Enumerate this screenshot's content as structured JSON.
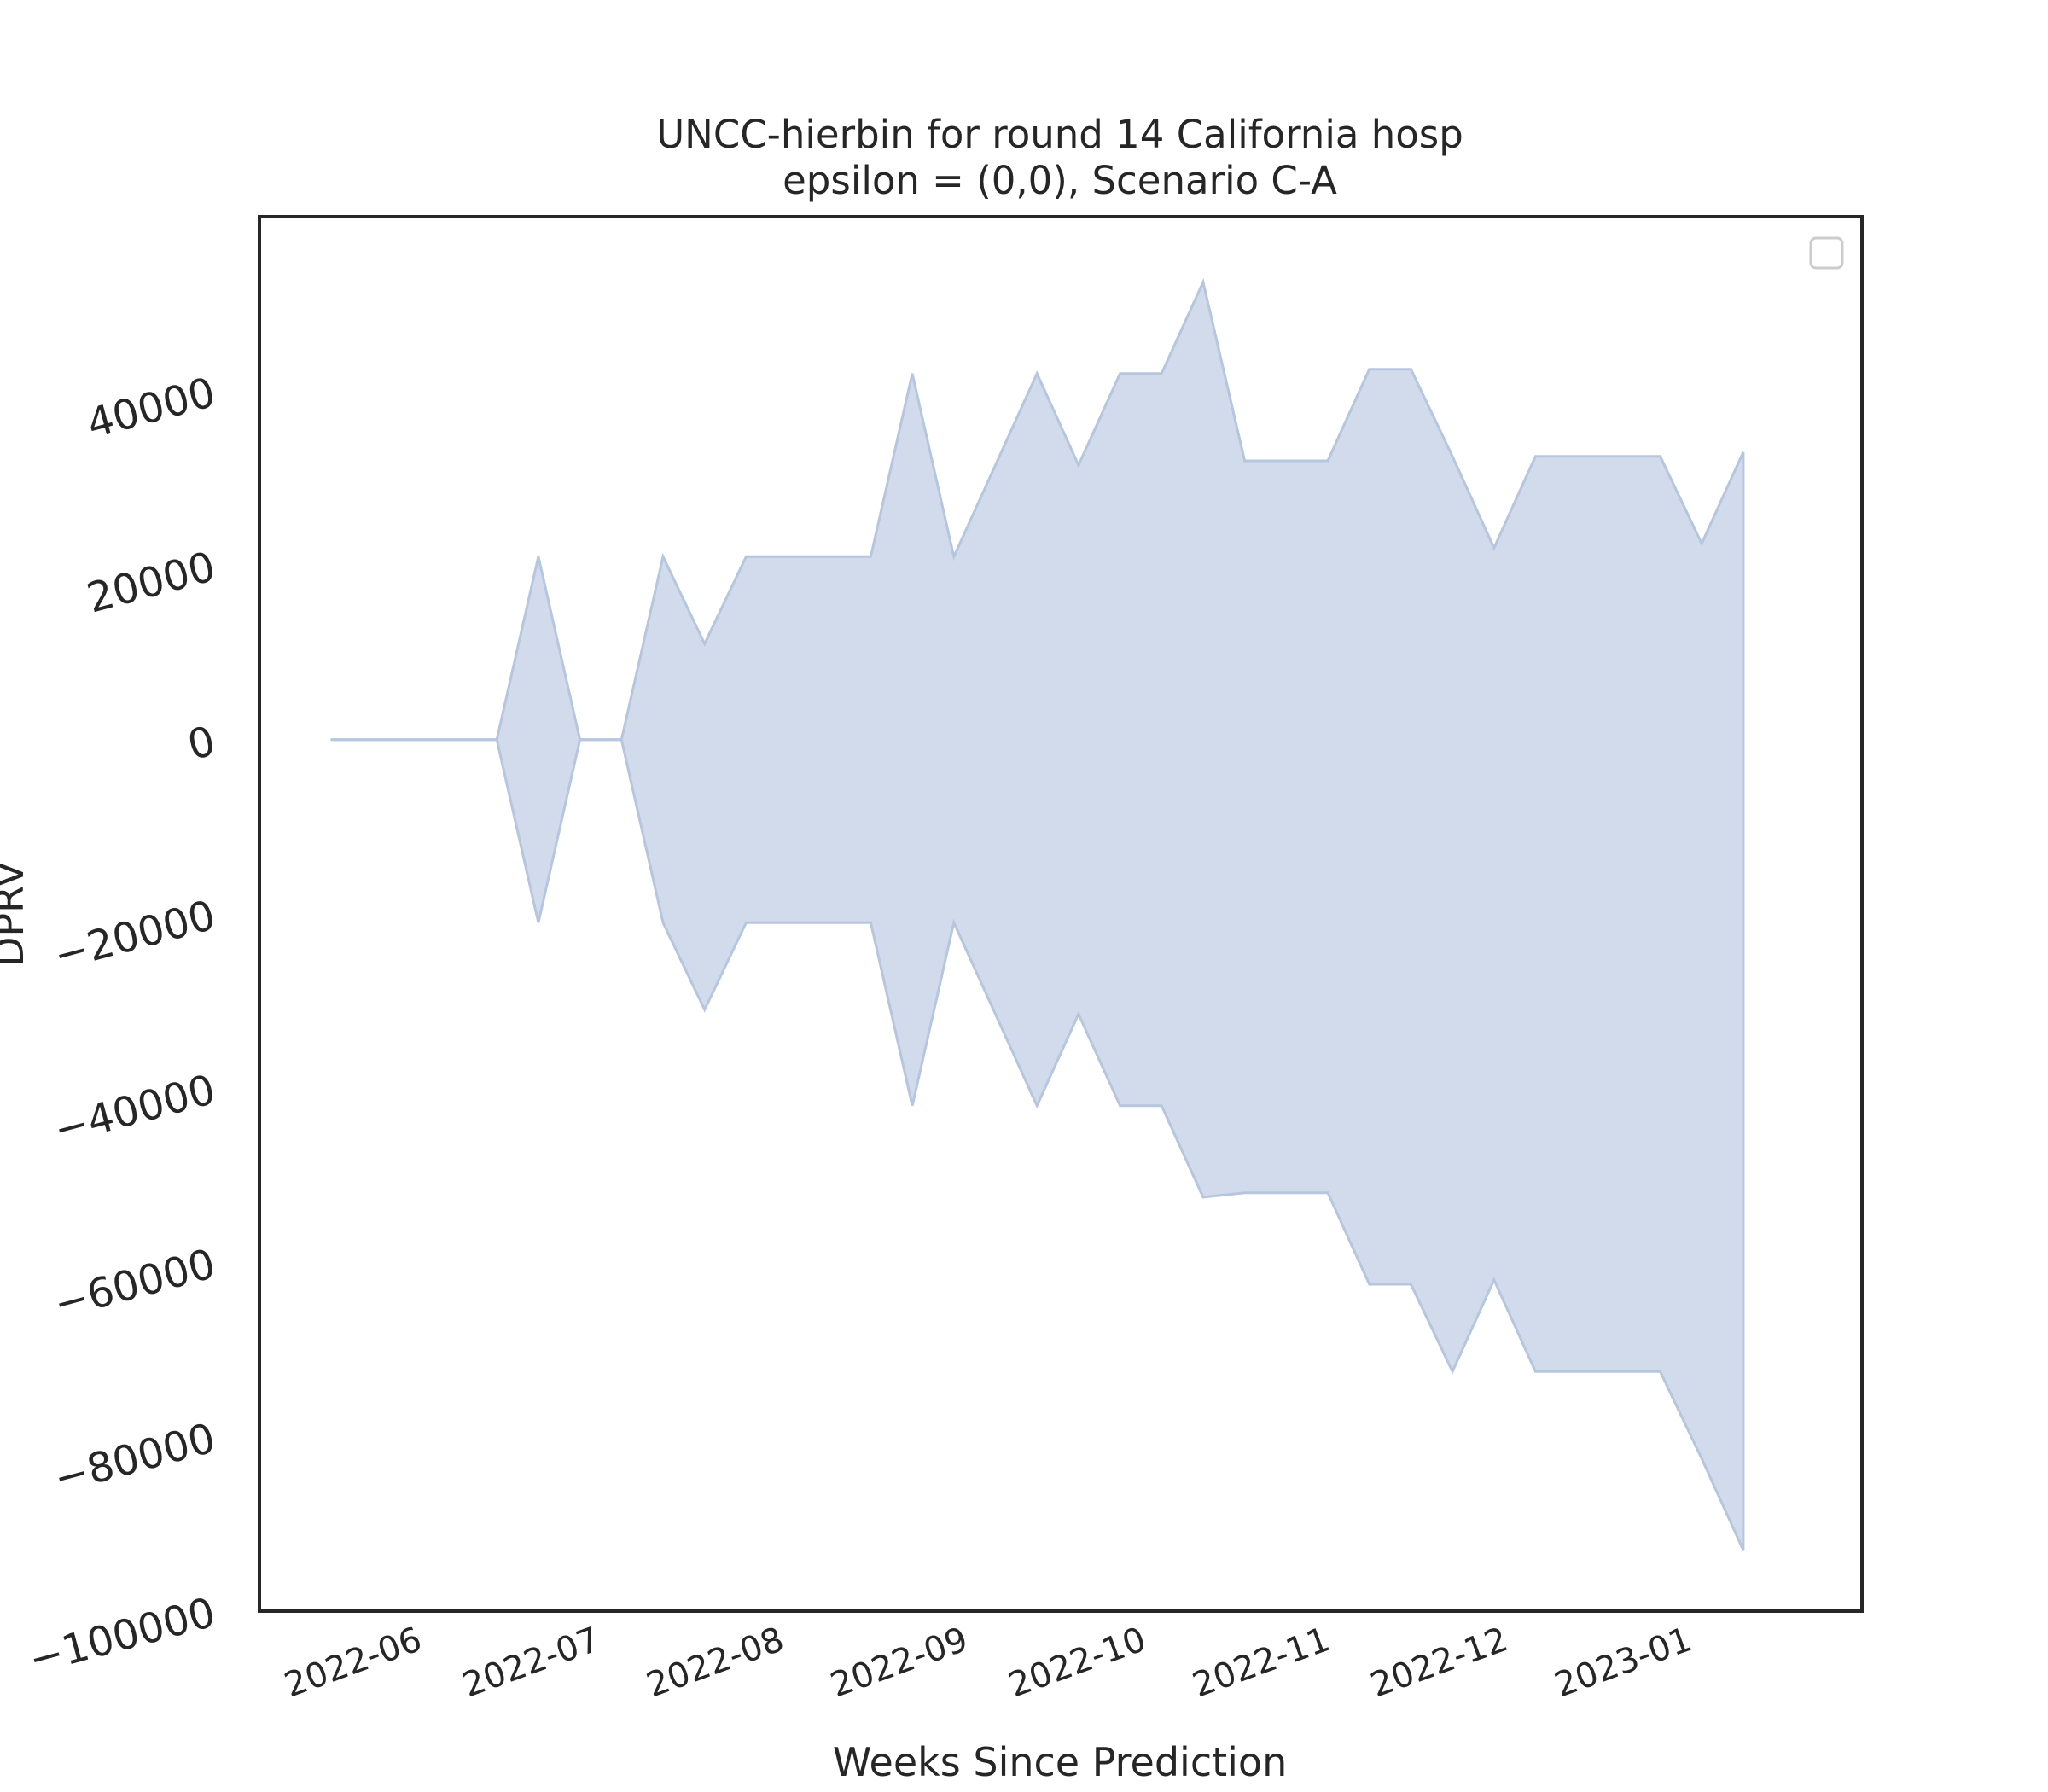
{
  "chart_data": {
    "type": "area",
    "title": "UNCC-hierbin for round 14 California hosp",
    "subtitle": "epsilon = (0,0), Scenario C-A",
    "xlabel": "Weeks Since Prediction",
    "ylabel": "DPRV",
    "xlim": [
      "2022-05-06",
      "2023-01-31"
    ],
    "ylim": [
      -100000,
      60000
    ],
    "grid": false,
    "legend": "top-right",
    "x_ticks": [
      "2022-06",
      "2022-07",
      "2022-08",
      "2022-09",
      "2022-10",
      "2022-11",
      "2022-12",
      "2023-01"
    ],
    "y_ticks": [
      40000,
      20000,
      0,
      -20000,
      -40000,
      -60000,
      -80000,
      -100000
    ],
    "y_tick_labels": [
      "40000",
      "20000",
      "0",
      "−20000",
      "−40000",
      "−60000",
      "−80000",
      "−100000"
    ],
    "fill_color": "#d1dbeb",
    "line_color": "#b6c6df",
    "x": [
      "2022-05-18",
      "2022-05-25",
      "2022-06-01",
      "2022-06-08",
      "2022-06-15",
      "2022-06-22",
      "2022-06-29",
      "2022-07-06",
      "2022-07-13",
      "2022-07-20",
      "2022-07-27",
      "2022-08-03",
      "2022-08-10",
      "2022-08-17",
      "2022-08-24",
      "2022-08-31",
      "2022-09-07",
      "2022-09-14",
      "2022-09-21",
      "2022-09-28",
      "2022-10-05",
      "2022-10-12",
      "2022-10-19",
      "2022-10-26",
      "2022-11-02",
      "2022-11-09",
      "2022-11-16",
      "2022-11-23",
      "2022-11-30",
      "2022-12-07",
      "2022-12-14",
      "2022-12-21",
      "2022-12-28",
      "2023-01-04",
      "2023-01-11"
    ],
    "upper": [
      0,
      0,
      0,
      0,
      0,
      21000,
      0,
      0,
      21000,
      11000,
      21000,
      21000,
      21000,
      21000,
      42000,
      21000,
      31500,
      42000,
      31500,
      42000,
      42000,
      52500,
      32000,
      32000,
      32000,
      42500,
      42500,
      32500,
      22000,
      32500,
      32500,
      32500,
      32500,
      22500,
      33000
    ],
    "lower": [
      0,
      0,
      0,
      0,
      0,
      -21000,
      0,
      0,
      -21000,
      -31000,
      -21000,
      -21000,
      -21000,
      -21000,
      -42000,
      -21000,
      -31500,
      -42000,
      -31500,
      -42000,
      -42000,
      -52500,
      -52000,
      -52000,
      -52000,
      -62500,
      -62500,
      -72500,
      -62000,
      -72500,
      -72500,
      -72500,
      -72500,
      -82500,
      -93000
    ]
  }
}
